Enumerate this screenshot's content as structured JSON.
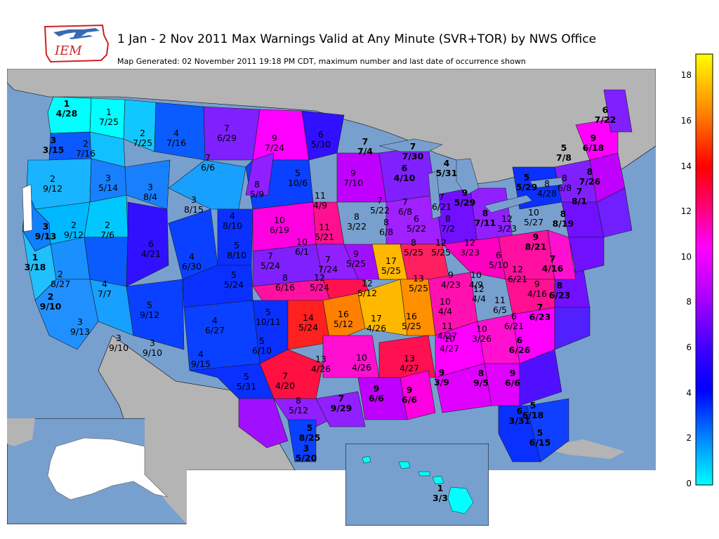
{
  "header": {
    "logo_text": "IEM",
    "title": "1 Jan - 2 Nov 2011 Max Warnings Valid at Any Minute (SVR+TOR) by NWS Office",
    "subtitle": "Map Generated: 02 November 2011 19:18 PM CDT, maximum number and last date of occurrence shown"
  },
  "colorbar": {
    "ticks": [
      "0",
      "2",
      "4",
      "6",
      "8",
      "10",
      "12",
      "14",
      "16",
      "18"
    ],
    "range": [
      0,
      19
    ],
    "colors": [
      "#00ffff",
      "#0060ff",
      "#0000ff",
      "#8000ff",
      "#ff00ff",
      "#ff0040",
      "#ff8000",
      "#ffff00"
    ]
  },
  "map_colors": {
    "ocean": "#78a0cf",
    "land_outside": "#b4b4b4",
    "borders": "#000000"
  },
  "offices": [
    {
      "value": "1",
      "date": "4/28",
      "bold": true
    },
    {
      "value": "1",
      "date": "7/25",
      "bold": false
    },
    {
      "value": "2",
      "date": "7/25",
      "bold": false
    },
    {
      "value": "4",
      "date": "7/16",
      "bold": false
    },
    {
      "value": "7",
      "date": "6/29",
      "bold": false
    },
    {
      "value": "9",
      "date": "7/24",
      "bold": false
    },
    {
      "value": "6",
      "date": "5/30",
      "bold": false
    },
    {
      "value": "7",
      "date": "7/4",
      "bold": true
    },
    {
      "value": "7",
      "date": "7/30",
      "bold": true
    },
    {
      "value": "6",
      "date": "7/22",
      "bold": true
    },
    {
      "value": "9",
      "date": "6/18",
      "bold": true
    },
    {
      "value": "5",
      "date": "7/8",
      "bold": true
    },
    {
      "value": "8",
      "date": "7/26",
      "bold": true
    },
    {
      "value": "3",
      "date": "3/15",
      "bold": true
    },
    {
      "value": "2",
      "date": "7/16",
      "bold": false
    },
    {
      "value": "7",
      "date": "6/6",
      "bold": false
    },
    {
      "value": "2",
      "date": "9/12",
      "bold": false
    },
    {
      "value": "3",
      "date": "5/14",
      "bold": false
    },
    {
      "value": "3",
      "date": "8/4",
      "bold": false
    },
    {
      "value": "8",
      "date": "5/9",
      "bold": false
    },
    {
      "value": "5",
      "date": "10/6",
      "bold": false
    },
    {
      "value": "9",
      "date": "7/10",
      "bold": false
    },
    {
      "value": "6",
      "date": "4/10",
      "bold": true
    },
    {
      "value": "4",
      "date": "5/31",
      "bold": true
    },
    {
      "value": "5",
      "date": "5/29",
      "bold": true
    },
    {
      "value": "8",
      "date": "4/28",
      "bold": false
    },
    {
      "value": "8",
      "date": "6/8",
      "bold": false
    },
    {
      "value": "7",
      "date": "8/1",
      "bold": true
    },
    {
      "value": "3",
      "date": "8/15",
      "bold": false
    },
    {
      "value": "11",
      "date": "4/9",
      "bold": false
    },
    {
      "value": "7",
      "date": "5/22",
      "bold": false
    },
    {
      "value": "7",
      "date": "6/8",
      "bold": false
    },
    {
      "value": "7",
      "date": "6/21",
      "bold": false
    },
    {
      "value": "9",
      "date": "5/29",
      "bold": true
    },
    {
      "value": "8",
      "date": "7/11",
      "bold": true
    },
    {
      "value": "10",
      "date": "5/27",
      "bold": false
    },
    {
      "value": "8",
      "date": "8/19",
      "bold": true
    },
    {
      "value": "3",
      "date": "9/13",
      "bold": true
    },
    {
      "value": "2",
      "date": "9/12",
      "bold": false
    },
    {
      "value": "2",
      "date": "7/6",
      "bold": false
    },
    {
      "value": "4",
      "date": "8/10",
      "bold": false
    },
    {
      "value": "10",
      "date": "6/19",
      "bold": false
    },
    {
      "value": "11",
      "date": "5/21",
      "bold": false
    },
    {
      "value": "8",
      "date": "3/22",
      "bold": false
    },
    {
      "value": "8",
      "date": "6/8",
      "bold": false
    },
    {
      "value": "6",
      "date": "5/22",
      "bold": false
    },
    {
      "value": "8",
      "date": "7/2",
      "bold": false
    },
    {
      "value": "12",
      "date": "3/23",
      "bold": false
    },
    {
      "value": "9",
      "date": "8/21",
      "bold": true
    },
    {
      "value": "6",
      "date": "4/21",
      "bold": false
    },
    {
      "value": "4",
      "date": "6/30",
      "bold": false
    },
    {
      "value": "5",
      "date": "8/10",
      "bold": false
    },
    {
      "value": "10",
      "date": "6/1",
      "bold": false
    },
    {
      "value": "7",
      "date": "5/24",
      "bold": false
    },
    {
      "value": "9",
      "date": "5/25",
      "bold": false
    },
    {
      "value": "17",
      "date": "5/25",
      "bold": false
    },
    {
      "value": "8",
      "date": "5/25",
      "bold": false
    },
    {
      "value": "12",
      "date": "5/25",
      "bold": false
    },
    {
      "value": "12",
      "date": "3/23",
      "bold": false
    },
    {
      "value": "6",
      "date": "5/10",
      "bold": false
    },
    {
      "value": "7",
      "date": "4/16",
      "bold": true
    },
    {
      "value": "1",
      "date": "3/18",
      "bold": true
    },
    {
      "value": "2",
      "date": "8/27",
      "bold": false
    },
    {
      "value": "4",
      "date": "7/7",
      "bold": false
    },
    {
      "value": "5",
      "date": "5/24",
      "bold": false
    },
    {
      "value": "7",
      "date": "7/24",
      "bold": false
    },
    {
      "value": "8",
      "date": "6/16",
      "bold": false
    },
    {
      "value": "12",
      "date": "5/24",
      "bold": false
    },
    {
      "value": "12",
      "date": "5/12",
      "bold": false
    },
    {
      "value": "13",
      "date": "5/25",
      "bold": false
    },
    {
      "value": "9",
      "date": "4/23",
      "bold": false
    },
    {
      "value": "10",
      "date": "4/9",
      "bold": false
    },
    {
      "value": "12",
      "date": "6/21",
      "bold": false
    },
    {
      "value": "9",
      "date": "4/16",
      "bold": false
    },
    {
      "value": "8",
      "date": "6/23",
      "bold": true
    },
    {
      "value": "2",
      "date": "9/10",
      "bold": true
    },
    {
      "value": "5",
      "date": "9/12",
      "bold": false
    },
    {
      "value": "4",
      "date": "6/27",
      "bold": false
    },
    {
      "value": "5",
      "date": "10/11",
      "bold": false
    },
    {
      "value": "14",
      "date": "5/24",
      "bold": false
    },
    {
      "value": "16",
      "date": "5/12",
      "bold": false
    },
    {
      "value": "17",
      "date": "4/26",
      "bold": false
    },
    {
      "value": "16",
      "date": "5/25",
      "bold": false
    },
    {
      "value": "10",
      "date": "4/4",
      "bold": false
    },
    {
      "value": "12",
      "date": "4/4",
      "bold": false
    },
    {
      "value": "11",
      "date": "6/5",
      "bold": false
    },
    {
      "value": "7",
      "date": "6/23",
      "bold": true
    },
    {
      "value": "3",
      "date": "9/13",
      "bold": false
    },
    {
      "value": "3",
      "date": "9/10",
      "bold": false
    },
    {
      "value": "3",
      "date": "9/10",
      "bold": false
    },
    {
      "value": "4",
      "date": "9/15",
      "bold": false
    },
    {
      "value": "5",
      "date": "6/10",
      "bold": false
    },
    {
      "value": "11",
      "date": "4/27",
      "bold": false
    },
    {
      "value": "10",
      "date": "3/26",
      "bold": false
    },
    {
      "value": "6",
      "date": "6/21",
      "bold": false
    },
    {
      "value": "6",
      "date": "6/26",
      "bold": true
    },
    {
      "value": "10",
      "date": "4/27",
      "bold": false
    },
    {
      "value": "5",
      "date": "5/31",
      "bold": false
    },
    {
      "value": "7",
      "date": "4/20",
      "bold": false
    },
    {
      "value": "13",
      "date": "4/26",
      "bold": false
    },
    {
      "value": "10",
      "date": "4/26",
      "bold": false
    },
    {
      "value": "13",
      "date": "4/27",
      "bold": false
    },
    {
      "value": "9",
      "date": "3/9",
      "bold": true
    },
    {
      "value": "8",
      "date": "9/5",
      "bold": true
    },
    {
      "value": "9",
      "date": "6/6",
      "bold": true
    },
    {
      "value": "7",
      "date": "9/29",
      "bold": true
    },
    {
      "value": "9",
      "date": "6/6",
      "bold": true
    },
    {
      "value": "9",
      "date": "6/6",
      "bold": true
    },
    {
      "value": "8",
      "date": "5/12",
      "bold": false
    },
    {
      "value": "5",
      "date": "6/18",
      "bold": true
    },
    {
      "value": "6",
      "date": "3/31",
      "bold": true
    },
    {
      "value": "5",
      "date": "8/25",
      "bold": true
    },
    {
      "value": "5",
      "date": "6/15",
      "bold": true
    },
    {
      "value": "3",
      "date": "5/20",
      "bold": true
    },
    {
      "value": "1",
      "date": "3/3",
      "bold": true
    }
  ]
}
